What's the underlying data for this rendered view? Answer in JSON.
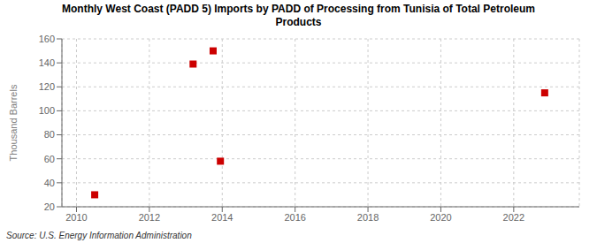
{
  "chart_data": {
    "type": "scatter",
    "title": "Monthly West Coast (PADD 5) Imports by PADD of Processing from Tunisia of Total Petroleum\nProducts",
    "ylabel": "Thousand Barrels",
    "annotations": [
      "Source: U.S. Energy Information Administration"
    ],
    "x": [
      2010.5,
      2013.2,
      2013.75,
      2013.95,
      2022.85
    ],
    "values": [
      30,
      139,
      150,
      58,
      115
    ],
    "color": "#cc0000",
    "marker": "square",
    "xlim": [
      2009.6,
      2023.8
    ],
    "ylim": [
      20,
      160
    ],
    "xticks": [
      2010,
      2012,
      2014,
      2016,
      2018,
      2020,
      2022
    ],
    "yticks": [
      20,
      40,
      60,
      80,
      100,
      120,
      140,
      160
    ],
    "grid": true
  }
}
